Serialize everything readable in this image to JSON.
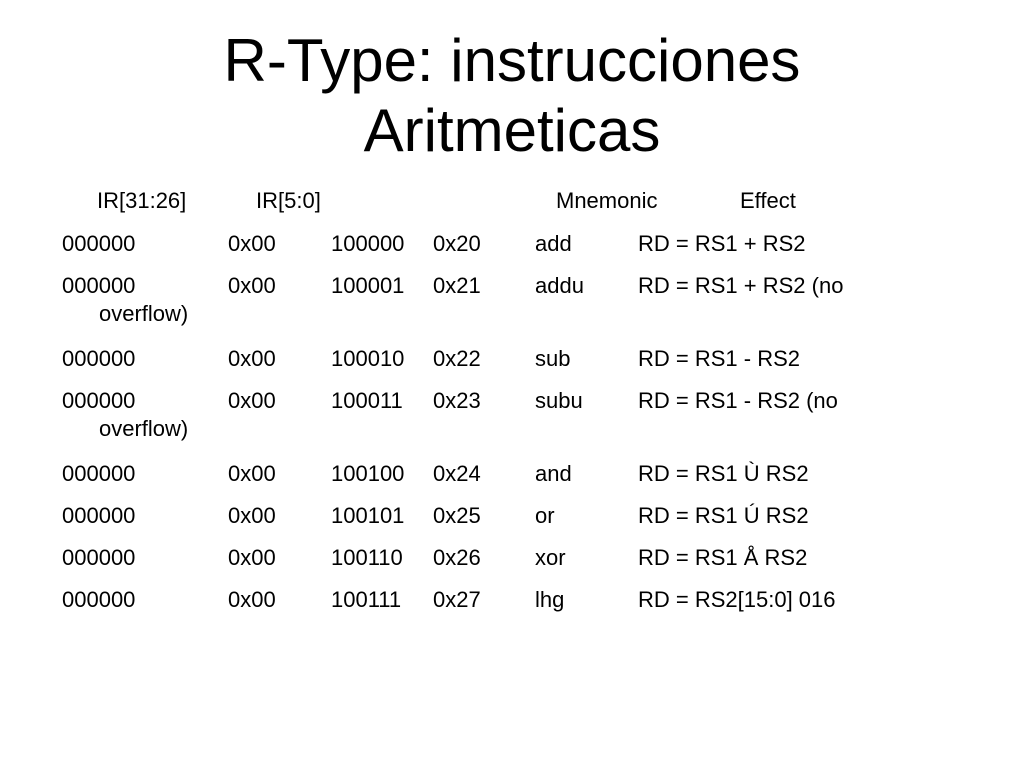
{
  "slide": {
    "title_line1": "R-Type: instrucciones",
    "title_line2": "Aritmeticas"
  },
  "table": {
    "headers": {
      "ir_31_26": "IR[31:26]",
      "ir_5_0": "IR[5:0]",
      "mnemonic": "Mnemonic",
      "effect": "Effect"
    },
    "rows": [
      {
        "opcode": "000000",
        "opcode_hex": "0x00",
        "funct": "100000",
        "funct_hex": "0x20",
        "mnemonic": "add",
        "effect": "RD = RS1 + RS2",
        "effect_cont": ""
      },
      {
        "opcode": "000000",
        "opcode_hex": "0x00",
        "funct": "100001",
        "funct_hex": "0x21",
        "mnemonic": "addu",
        "effect": "RD = RS1 + RS2 (no",
        "effect_cont": "overflow)"
      },
      {
        "opcode": "000000",
        "opcode_hex": "0x00",
        "funct": "100010",
        "funct_hex": "0x22",
        "mnemonic": "sub",
        "effect": "RD = RS1 - RS2",
        "effect_cont": ""
      },
      {
        "opcode": "000000",
        "opcode_hex": "0x00",
        "funct": "100011",
        "funct_hex": "0x23",
        "mnemonic": "subu",
        "effect": "RD = RS1 - RS2 (no",
        "effect_cont": "overflow)"
      },
      {
        "opcode": "000000",
        "opcode_hex": "0x00",
        "funct": "100100",
        "funct_hex": "0x24",
        "mnemonic": "and",
        "effect": "RD = RS1 Ù RS2",
        "effect_cont": ""
      },
      {
        "opcode": "000000",
        "opcode_hex": "0x00",
        "funct": "100101",
        "funct_hex": "0x25",
        "mnemonic": "or",
        "effect": "RD = RS1 Ú RS2",
        "effect_cont": ""
      },
      {
        "opcode": "000000",
        "opcode_hex": "0x00",
        "funct": "100110",
        "funct_hex": "0x26",
        "mnemonic": "xor",
        "effect": "RD = RS1 Å RS2",
        "effect_cont": ""
      },
      {
        "opcode": "000000",
        "opcode_hex": "0x00",
        "funct": "100111",
        "funct_hex": "0x27",
        "mnemonic": "lhg",
        "effect": "RD = RS2[15:0] 016",
        "effect_cont": ""
      }
    ]
  }
}
